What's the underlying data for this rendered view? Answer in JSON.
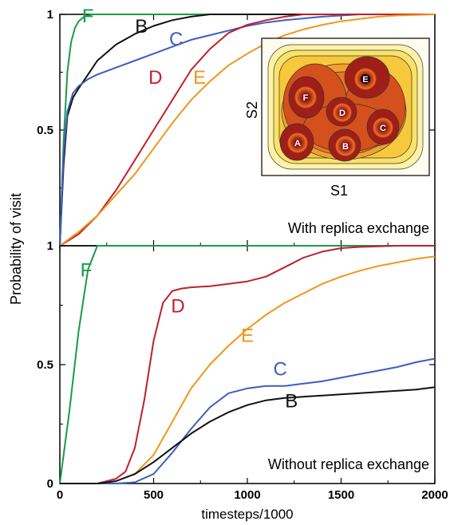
{
  "chart_data": [
    {
      "type": "line",
      "panel": "top",
      "annotation": "With replica exchange",
      "xlim": [
        0,
        2000
      ],
      "ylim": [
        0,
        1
      ],
      "yticks": [
        0,
        0.5,
        1
      ],
      "ytick_labels": [
        "",
        "0.5",
        "1"
      ],
      "series": [
        {
          "name": "F",
          "color": "#1a9a4a",
          "label_at": [
            150,
            0.965
          ],
          "x": [
            0,
            20,
            40,
            60,
            80,
            100,
            130,
            170,
            220,
            300,
            2000
          ],
          "y": [
            0,
            0.45,
            0.75,
            0.88,
            0.94,
            0.97,
            0.99,
            1.0,
            1.0,
            1.0,
            1.0
          ]
        },
        {
          "name": "B",
          "color": "#111111",
          "label_at": [
            435,
            0.92
          ],
          "x": [
            0,
            20,
            40,
            70,
            100,
            150,
            200,
            300,
            400,
            500,
            600,
            700,
            800,
            1000,
            1200,
            2000
          ],
          "y": [
            0,
            0.35,
            0.56,
            0.64,
            0.68,
            0.74,
            0.8,
            0.87,
            0.915,
            0.95,
            0.975,
            0.99,
            1.0,
            1.0,
            1.0,
            1.0
          ]
        },
        {
          "name": "C",
          "color": "#3b5fc0",
          "label_at": [
            620,
            0.865
          ],
          "x": [
            0,
            20,
            40,
            70,
            100,
            150,
            200,
            300,
            400,
            500,
            600,
            700,
            800,
            900,
            1000,
            1100,
            1200,
            1400,
            1600,
            2000
          ],
          "y": [
            0,
            0.4,
            0.58,
            0.66,
            0.69,
            0.72,
            0.74,
            0.77,
            0.8,
            0.83,
            0.86,
            0.89,
            0.91,
            0.93,
            0.95,
            0.965,
            0.975,
            0.99,
            1.0,
            1.0
          ]
        },
        {
          "name": "D",
          "color": "#c0202a",
          "label_at": [
            510,
            0.7
          ],
          "x": [
            0,
            100,
            200,
            300,
            400,
            500,
            600,
            700,
            800,
            900,
            1000,
            1100,
            1200,
            1300,
            1400,
            2000
          ],
          "y": [
            0,
            0.05,
            0.13,
            0.24,
            0.37,
            0.5,
            0.63,
            0.76,
            0.85,
            0.92,
            0.955,
            0.975,
            0.99,
            1.0,
            1.0,
            1.0
          ]
        },
        {
          "name": "E",
          "color": "#f0961e",
          "label_at": [
            745,
            0.7
          ],
          "x": [
            0,
            100,
            200,
            300,
            400,
            500,
            600,
            700,
            800,
            900,
            1000,
            1100,
            1200,
            1300,
            1400,
            1500,
            1600,
            1700,
            1800,
            2000
          ],
          "y": [
            0,
            0.06,
            0.13,
            0.22,
            0.31,
            0.42,
            0.53,
            0.63,
            0.71,
            0.78,
            0.83,
            0.875,
            0.91,
            0.935,
            0.955,
            0.97,
            0.98,
            0.99,
            0.995,
            1.0
          ]
        }
      ],
      "inset": {
        "xlabel": "S1",
        "ylabel": "S2",
        "labels": [
          "F",
          "E",
          "D",
          "A",
          "B",
          "C"
        ]
      }
    },
    {
      "type": "line",
      "panel": "bottom",
      "annotation": "Without replica exchange",
      "xlabel": "timesteps/1000",
      "xlim": [
        0,
        2000
      ],
      "xticks": [
        0,
        500,
        1000,
        1500,
        2000
      ],
      "ylim": [
        0,
        1
      ],
      "yticks": [
        0,
        0.5,
        1
      ],
      "ytick_labels": [
        "0",
        "0.5",
        "1"
      ],
      "series": [
        {
          "name": "F",
          "color": "#1a9a4a",
          "label_at": [
            140,
            0.87
          ],
          "x": [
            0,
            50,
            100,
            150,
            200,
            250,
            2000
          ],
          "y": [
            0,
            0.3,
            0.64,
            0.9,
            1.0,
            1.0,
            1.0
          ]
        },
        {
          "name": "D",
          "color": "#c0202a",
          "label_at": [
            630,
            0.72
          ],
          "x": [
            0,
            200,
            300,
            350,
            400,
            450,
            500,
            550,
            600,
            650,
            700,
            800,
            900,
            1000,
            1100,
            1200,
            1300,
            1400,
            1500,
            1600,
            1800,
            2000
          ],
          "y": [
            0,
            0,
            0.02,
            0.05,
            0.15,
            0.35,
            0.6,
            0.76,
            0.81,
            0.82,
            0.825,
            0.83,
            0.84,
            0.85,
            0.87,
            0.91,
            0.95,
            0.975,
            0.99,
            0.995,
            1.0,
            1.0
          ]
        },
        {
          "name": "E",
          "color": "#f0961e",
          "label_at": [
            1000,
            0.595
          ],
          "x": [
            0,
            200,
            300,
            400,
            500,
            600,
            700,
            800,
            900,
            1000,
            1100,
            1200,
            1300,
            1400,
            1500,
            1600,
            1700,
            1800,
            1900,
            2000
          ],
          "y": [
            0,
            0,
            0.01,
            0.04,
            0.12,
            0.26,
            0.4,
            0.5,
            0.58,
            0.65,
            0.71,
            0.76,
            0.8,
            0.84,
            0.87,
            0.895,
            0.915,
            0.93,
            0.945,
            0.955
          ]
        },
        {
          "name": "C",
          "color": "#3b5fc0",
          "label_at": [
            1175,
            0.455
          ],
          "x": [
            0,
            300,
            400,
            500,
            600,
            700,
            800,
            900,
            1000,
            1100,
            1200,
            1300,
            1400,
            1500,
            1600,
            1700,
            1800,
            1900,
            2000
          ],
          "y": [
            0,
            0,
            0.005,
            0.04,
            0.13,
            0.23,
            0.32,
            0.38,
            0.4,
            0.41,
            0.41,
            0.42,
            0.43,
            0.445,
            0.46,
            0.475,
            0.49,
            0.51,
            0.525
          ]
        },
        {
          "name": "B",
          "color": "#111111",
          "label_at": [
            1235,
            0.32
          ],
          "x": [
            0,
            200,
            300,
            400,
            500,
            600,
            700,
            800,
            900,
            1000,
            1100,
            1200,
            1300,
            1400,
            1500,
            1600,
            1700,
            1800,
            1900,
            2000
          ],
          "y": [
            0,
            0,
            0.01,
            0.04,
            0.09,
            0.15,
            0.21,
            0.26,
            0.3,
            0.33,
            0.35,
            0.36,
            0.365,
            0.37,
            0.375,
            0.38,
            0.385,
            0.39,
            0.395,
            0.405
          ]
        }
      ]
    }
  ],
  "ylabel": "Probability of visit"
}
